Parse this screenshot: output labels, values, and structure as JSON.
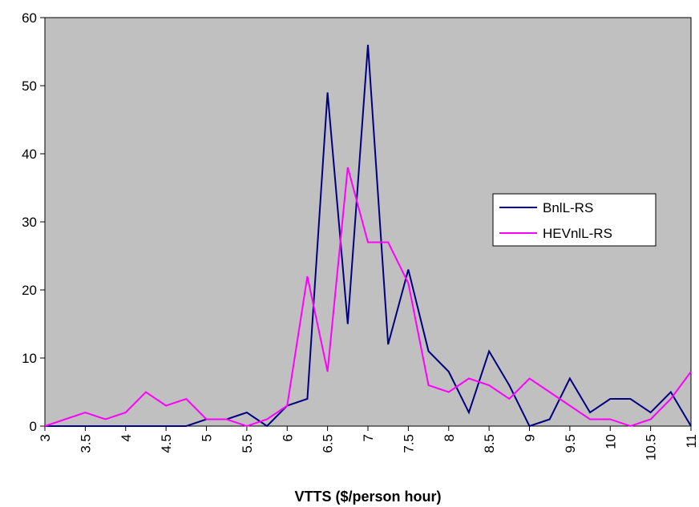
{
  "chart_data": {
    "type": "line",
    "x_label": "VTTS ($/person hour)",
    "x": [
      3,
      3.25,
      3.5,
      3.75,
      4,
      4.25,
      4.5,
      4.75,
      5,
      5.25,
      5.5,
      5.75,
      6,
      6.25,
      6.5,
      6.75,
      7,
      7.25,
      7.5,
      7.75,
      8,
      8.25,
      8.5,
      8.75,
      9,
      9.25,
      9.5,
      9.75,
      10,
      10.25,
      10.5,
      10.75,
      11
    ],
    "series": [
      {
        "name": "BnlL-RS",
        "color": "#000080",
        "values": [
          0,
          0,
          0,
          0,
          0,
          0,
          0,
          0,
          1,
          1,
          2,
          0,
          3,
          4,
          49,
          15,
          56,
          12,
          23,
          11,
          8,
          2,
          11,
          6,
          0,
          1,
          7,
          2,
          4,
          4,
          2,
          5,
          0
        ]
      },
      {
        "name": "HEVnlL-RS",
        "color": "#ff00ff",
        "values": [
          0,
          1,
          2,
          1,
          2,
          5,
          3,
          4,
          1,
          1,
          0,
          1,
          3,
          22,
          8,
          38,
          27,
          27,
          21,
          6,
          5,
          7,
          6,
          4,
          7,
          5,
          3,
          1,
          1,
          0,
          1,
          4,
          8
        ]
      }
    ],
    "xlim": [
      3,
      11
    ],
    "xticks": [
      3,
      3.5,
      4,
      4.5,
      5,
      5.5,
      6,
      6.5,
      7,
      7.5,
      8,
      8.5,
      9,
      9.5,
      10,
      10.5,
      11
    ],
    "ylim": [
      0,
      60
    ],
    "yticks": [
      0,
      10,
      20,
      30,
      40,
      50,
      60
    ],
    "grid": false,
    "plot_background": "#c0c0c0",
    "legend_position": "right"
  }
}
